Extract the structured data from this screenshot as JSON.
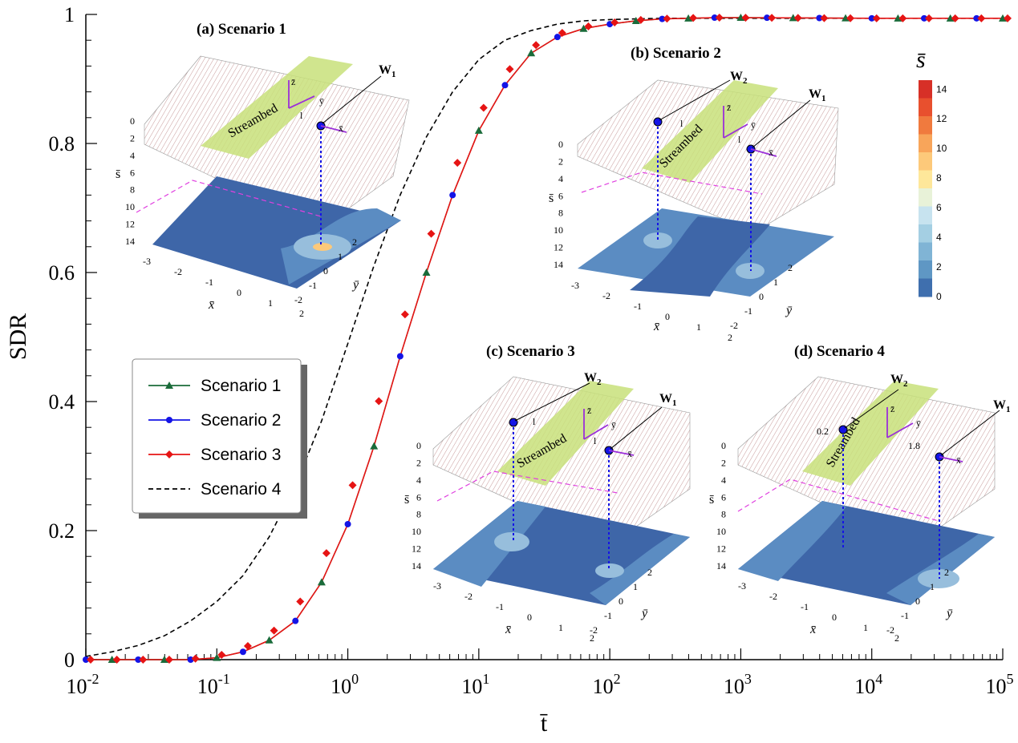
{
  "chart_data": {
    "type": "line",
    "xlabel": "t̄",
    "ylabel": "SDR",
    "xscale": "log",
    "xlim": [
      0.01,
      100000
    ],
    "ylim": [
      0,
      1
    ],
    "x_tick_labels": [
      {
        "base": "10",
        "exp": "-2"
      },
      {
        "base": "10",
        "exp": "-1"
      },
      {
        "base": "10",
        "exp": "0"
      },
      {
        "base": "10",
        "exp": "1"
      },
      {
        "base": "10",
        "exp": "2"
      },
      {
        "base": "10",
        "exp": "3"
      },
      {
        "base": "10",
        "exp": "4"
      },
      {
        "base": "10",
        "exp": "5"
      }
    ],
    "y_tick_labels": [
      "0",
      "0.2",
      "0.4",
      "0.6",
      "0.8",
      "1"
    ],
    "legend_position": "left-middle",
    "series": [
      {
        "name": "Scenario 1",
        "color": "#1a6b3a",
        "marker": "triangle",
        "line": "solid"
      },
      {
        "name": "Scenario 2",
        "color": "#1414e6",
        "marker": "circle",
        "line": "solid"
      },
      {
        "name": "Scenario 3",
        "color": "#e61414",
        "marker": "diamond",
        "line": "solid"
      },
      {
        "name": "Scenario 4",
        "color": "#000000",
        "marker": "none",
        "line": "dashed"
      }
    ],
    "x": [
      0.01,
      0.0158,
      0.0251,
      0.0398,
      0.0631,
      0.1,
      0.158,
      0.251,
      0.398,
      0.631,
      1,
      1.58,
      2.51,
      3.98,
      6.31,
      10,
      15.8,
      25.1,
      39.8,
      63.1,
      100,
      158,
      251,
      398,
      631,
      1000,
      10000,
      100000
    ],
    "sdr_scenarios_1_3": [
      0,
      0,
      0,
      0,
      0,
      0.003,
      0.012,
      0.03,
      0.06,
      0.12,
      0.21,
      0.33,
      0.47,
      0.6,
      0.72,
      0.82,
      0.89,
      0.94,
      0.965,
      0.978,
      0.985,
      0.99,
      0.993,
      0.994,
      0.995,
      0.995,
      0.994,
      0.994
    ],
    "sdr_scenario_4": [
      0.005,
      0.012,
      0.022,
      0.037,
      0.06,
      0.09,
      0.13,
      0.19,
      0.27,
      0.37,
      0.49,
      0.61,
      0.72,
      0.81,
      0.88,
      0.93,
      0.96,
      0.975,
      0.985,
      0.99,
      0.992,
      0.993,
      0.994,
      0.994,
      0.994,
      0.994,
      0.994,
      0.994
    ]
  },
  "insets": [
    {
      "title": "(a) Scenario 1",
      "wells": [
        {
          "label": "W",
          "sub": "1"
        }
      ],
      "distances": [
        "l"
      ]
    },
    {
      "title": "(b) Scenario 2",
      "wells": [
        {
          "label": "W",
          "sub": "2"
        },
        {
          "label": "W",
          "sub": "1"
        }
      ],
      "distances": [
        "l",
        "l"
      ]
    },
    {
      "title": "(c) Scenario 3",
      "wells": [
        {
          "label": "W",
          "sub": "2"
        },
        {
          "label": "W",
          "sub": "1"
        }
      ],
      "distances": [
        "l",
        "l"
      ]
    },
    {
      "title": "(d) Scenario 4",
      "wells": [
        {
          "label": "W",
          "sub": "2"
        },
        {
          "label": "W",
          "sub": "1"
        }
      ],
      "distances": [
        "0.2",
        "1.8"
      ]
    }
  ],
  "inset_labels": {
    "streambed": "Streambed",
    "s_axis": "s̄",
    "x_axis": "x̄",
    "y_axis": "ȳ",
    "z_axis": "z̄",
    "s_ticks": [
      "0",
      "2",
      "4",
      "6",
      "8",
      "10",
      "12",
      "14"
    ],
    "x_ticks": [
      "-3",
      "-2",
      "-1",
      "0",
      "1",
      "2"
    ],
    "y_ticks": [
      "2",
      "1",
      "0",
      "-1",
      "-2"
    ]
  },
  "colorbar": {
    "title": "s̄",
    "labels": [
      "14",
      "12",
      "10",
      "8",
      "6",
      "4",
      "2",
      "0"
    ],
    "colors": [
      "#d73027",
      "#e8502e",
      "#f07a3e",
      "#f8a55a",
      "#fdc97a",
      "#fee79a",
      "#e8f2d8",
      "#c7e3ef",
      "#a4cfe3",
      "#80b4d5",
      "#5f97c4",
      "#3f6fae"
    ]
  },
  "colors": {
    "grid_plane": "#c9d9ea",
    "contour_dark": "#3e66a8",
    "contour_mid": "#5b8cc2",
    "contour_light": "#97bedc",
    "surface": "#b98080",
    "streambed": "#c8e07a",
    "axis_arrow": "#9b30d9",
    "dotted_line": "#1414e6",
    "dashed_inset": "#e040e0"
  }
}
